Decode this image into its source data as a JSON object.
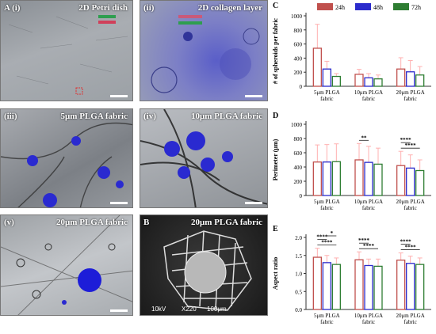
{
  "panels": {
    "p1": {
      "label": "A (i)",
      "title": "2D Petri dish"
    },
    "p2": {
      "label": "(ii)",
      "title": "2D collagen layer"
    },
    "p3": {
      "label": "(iii)",
      "title": "5μm PLGA fabric"
    },
    "p4": {
      "label": "(iv)",
      "title": "10μm PLGA fabric"
    },
    "p5": {
      "label": "(v)",
      "title": "20μm PLGA fabric"
    },
    "p6": {
      "label": "B",
      "title": "20μm PLGA fabric",
      "sem_info": [
        "10kV",
        "X220",
        "100μm"
      ]
    }
  },
  "colors": {
    "h24": "#c0504d",
    "h48": "#2b2bcc",
    "h72": "#2e7d32",
    "error": "#ffb0b0"
  },
  "chart_data": [
    {
      "id": "C",
      "type": "bar",
      "panel_label": "C",
      "ylabel": "# of spheroids per fabric",
      "ylim": [
        0,
        1000
      ],
      "yticks": [
        0,
        200,
        400,
        600,
        800,
        1000
      ],
      "categories": [
        "5μm PLGA fabric",
        "10μm PLGA fabric",
        "20μm PLGA fabric"
      ],
      "legend": [
        "24h",
        "48h",
        "72h"
      ],
      "series": [
        {
          "name": "24h",
          "values": [
            540,
            170,
            245
          ],
          "errors": [
            340,
            70,
            160
          ]
        },
        {
          "name": "48h",
          "values": [
            245,
            120,
            205
          ],
          "errors": [
            110,
            60,
            160
          ]
        },
        {
          "name": "72h",
          "values": [
            140,
            105,
            160
          ],
          "errors": [
            40,
            55,
            120
          ]
        }
      ],
      "significance": []
    },
    {
      "id": "D",
      "type": "bar",
      "panel_label": "D",
      "ylabel": "Perimeter (μm)",
      "ylim": [
        0,
        1000
      ],
      "yticks": [
        0,
        200,
        400,
        600,
        800,
        1000
      ],
      "categories": [
        "5μm PLGA fabric",
        "10μm PLGA fabric",
        "20μm PLGA fabric"
      ],
      "series": [
        {
          "name": "24h",
          "values": [
            470,
            500,
            420
          ],
          "errors": [
            240,
            230,
            200
          ]
        },
        {
          "name": "48h",
          "values": [
            470,
            465,
            385
          ],
          "errors": [
            245,
            225,
            185
          ]
        },
        {
          "name": "72h",
          "values": [
            475,
            440,
            350
          ],
          "errors": [
            250,
            225,
            150
          ]
        }
      ],
      "significance": [
        {
          "group": 1,
          "from": 0,
          "to": 1,
          "label": "**"
        },
        {
          "group": 2,
          "from": 0,
          "to": 2,
          "label": "****"
        },
        {
          "group": 2,
          "from": 0,
          "to": 1,
          "label": "****"
        }
      ]
    },
    {
      "id": "E",
      "type": "bar",
      "panel_label": "E",
      "ylabel": "Aspect ratio",
      "ylim": [
        0,
        2.0
      ],
      "yticks": [
        0,
        0.5,
        1.0,
        1.5,
        2.0
      ],
      "categories": [
        "5μm PLGA fabric",
        "10μm PLGA fabric",
        "20μm PLGA fabric"
      ],
      "series": [
        {
          "name": "24h",
          "values": [
            1.45,
            1.38,
            1.37
          ],
          "errors": [
            0.25,
            0.22,
            0.2
          ]
        },
        {
          "name": "48h",
          "values": [
            1.3,
            1.22,
            1.28
          ],
          "errors": [
            0.2,
            0.18,
            0.2
          ]
        },
        {
          "name": "72h",
          "values": [
            1.25,
            1.2,
            1.25
          ],
          "errors": [
            0.18,
            0.2,
            0.18
          ]
        }
      ],
      "significance": [
        {
          "group": 0,
          "from": 0,
          "to": 2,
          "label": "****"
        },
        {
          "group": 0,
          "from": 0,
          "to": 1,
          "label": "****"
        },
        {
          "group": 0,
          "from": 1,
          "to": 2,
          "label": "*"
        },
        {
          "group": 1,
          "from": 0,
          "to": 2,
          "label": "****"
        },
        {
          "group": 1,
          "from": 0,
          "to": 1,
          "label": "****"
        },
        {
          "group": 2,
          "from": 0,
          "to": 2,
          "label": "****"
        },
        {
          "group": 2,
          "from": 0,
          "to": 1,
          "label": "****"
        }
      ]
    }
  ]
}
